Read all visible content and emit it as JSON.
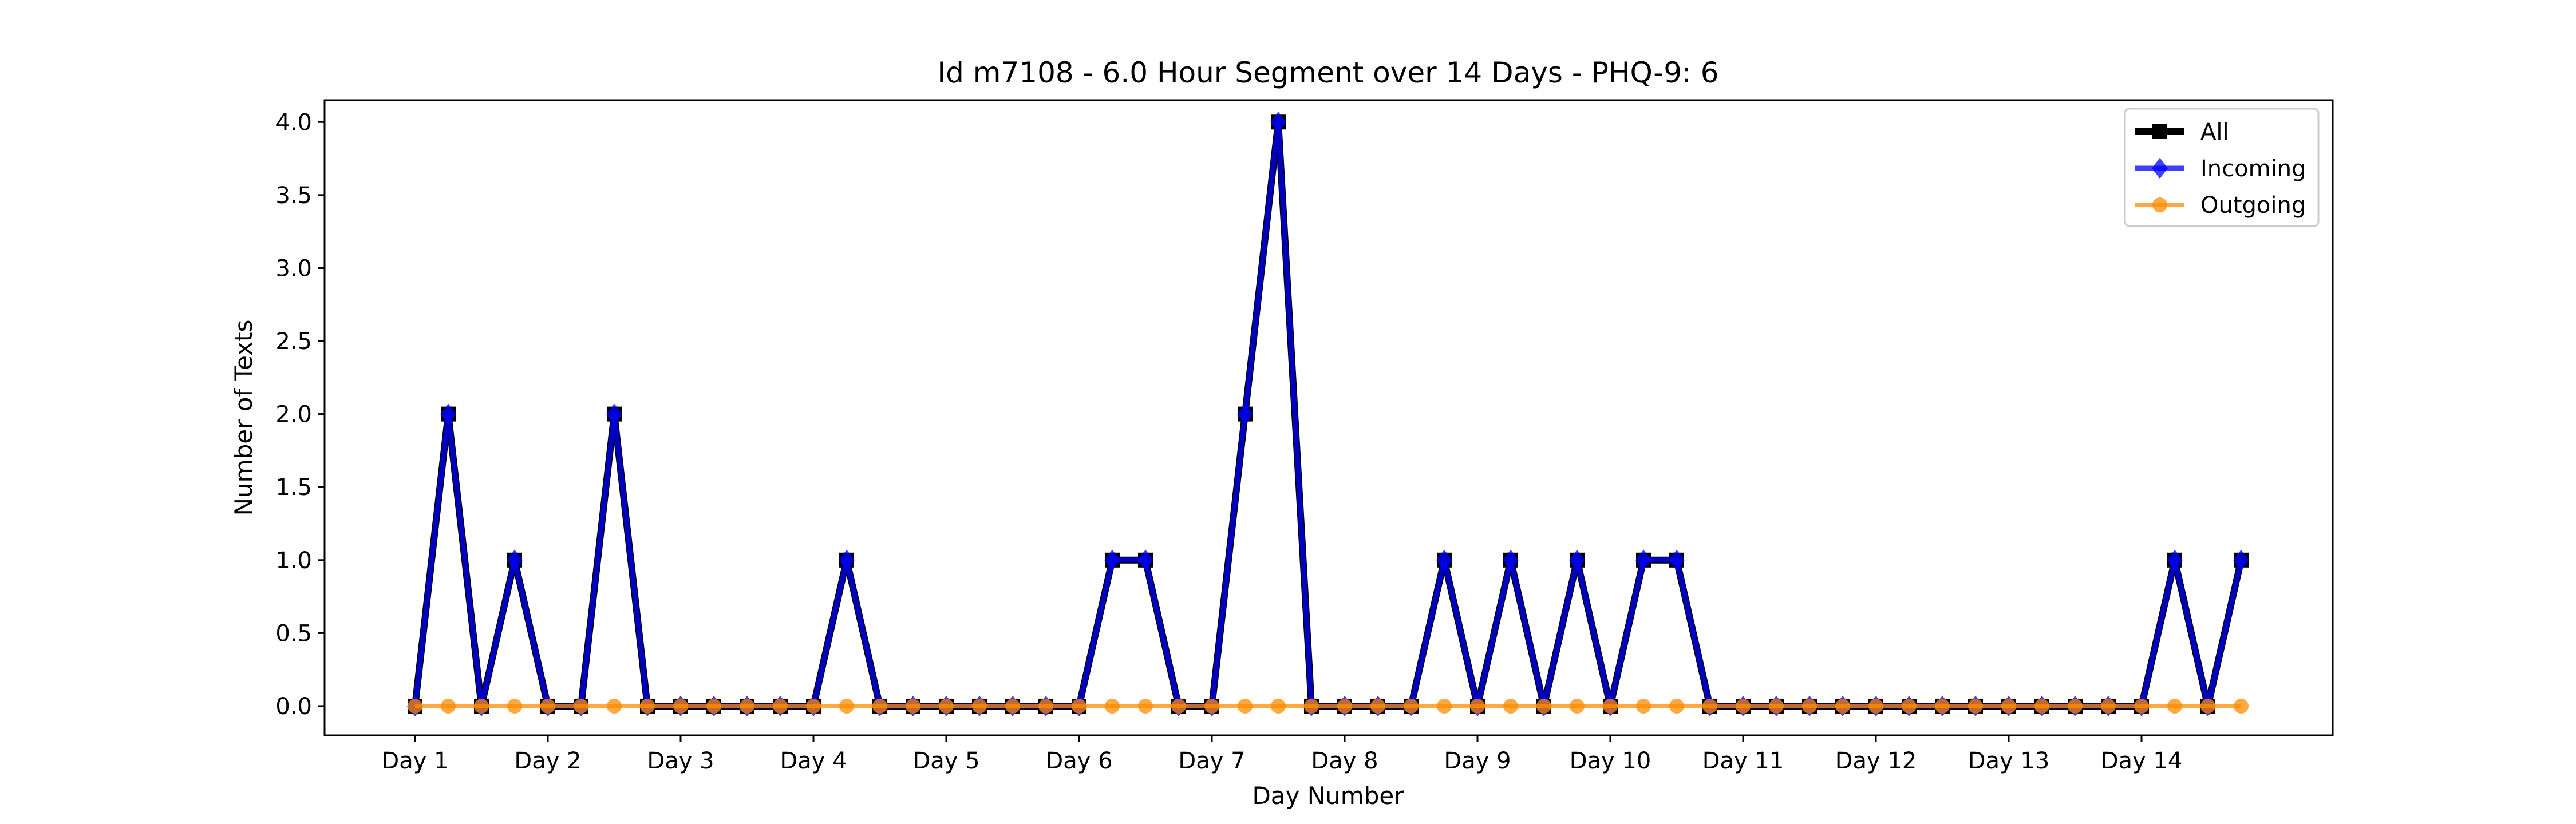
{
  "chart_data": {
    "type": "line",
    "title": "Id m7108 - 6.0 Hour Segment over 14 Days - PHQ-9: 6",
    "xlabel": "Day Number",
    "ylabel": "Number of Texts",
    "ylim": [
      -0.2,
      4.15
    ],
    "yticks": [
      0.0,
      0.5,
      1.0,
      1.5,
      2.0,
      2.5,
      3.0,
      3.5,
      4.0
    ],
    "ytick_labels": [
      "0.0",
      "0.5",
      "1.0",
      "1.5",
      "2.0",
      "2.5",
      "3.0",
      "3.5",
      "4.0"
    ],
    "xticks": [
      "Day 1",
      "Day 2",
      "Day 3",
      "Day 4",
      "Day 5",
      "Day 6",
      "Day 7",
      "Day 8",
      "Day 9",
      "Day 10",
      "Day 11",
      "Day 12",
      "Day 13",
      "Day 14"
    ],
    "segments_per_day": 4,
    "grid": false,
    "legend_position": "top-right",
    "series": [
      {
        "name": "All",
        "color": "#000000",
        "marker": "square",
        "values": [
          0,
          2,
          0,
          1,
          0,
          0,
          2,
          0,
          0,
          0,
          0,
          0,
          0,
          1,
          0,
          0,
          0,
          0,
          0,
          0,
          0,
          1,
          1,
          0,
          0,
          2,
          4,
          0,
          0,
          0,
          0,
          1,
          0,
          1,
          0,
          1,
          0,
          1,
          1,
          0,
          0,
          0,
          0,
          0,
          0,
          0,
          0,
          0,
          0,
          0,
          0,
          0,
          0,
          1,
          0,
          1
        ]
      },
      {
        "name": "Incoming",
        "color": "#0000ff",
        "marker": "diamond",
        "values": [
          0,
          2,
          0,
          1,
          0,
          0,
          2,
          0,
          0,
          0,
          0,
          0,
          0,
          1,
          0,
          0,
          0,
          0,
          0,
          0,
          0,
          1,
          1,
          0,
          0,
          2,
          4,
          0,
          0,
          0,
          0,
          1,
          0,
          1,
          0,
          1,
          0,
          1,
          1,
          0,
          0,
          0,
          0,
          0,
          0,
          0,
          0,
          0,
          0,
          0,
          0,
          0,
          0,
          1,
          0,
          1
        ]
      },
      {
        "name": "Outgoing",
        "color": "#ff8c00",
        "marker": "circle",
        "values": [
          0,
          0,
          0,
          0,
          0,
          0,
          0,
          0,
          0,
          0,
          0,
          0,
          0,
          0,
          0,
          0,
          0,
          0,
          0,
          0,
          0,
          0,
          0,
          0,
          0,
          0,
          0,
          0,
          0,
          0,
          0,
          0,
          0,
          0,
          0,
          0,
          0,
          0,
          0,
          0,
          0,
          0,
          0,
          0,
          0,
          0,
          0,
          0,
          0,
          0,
          0,
          0,
          0,
          0,
          0,
          0
        ]
      }
    ]
  }
}
